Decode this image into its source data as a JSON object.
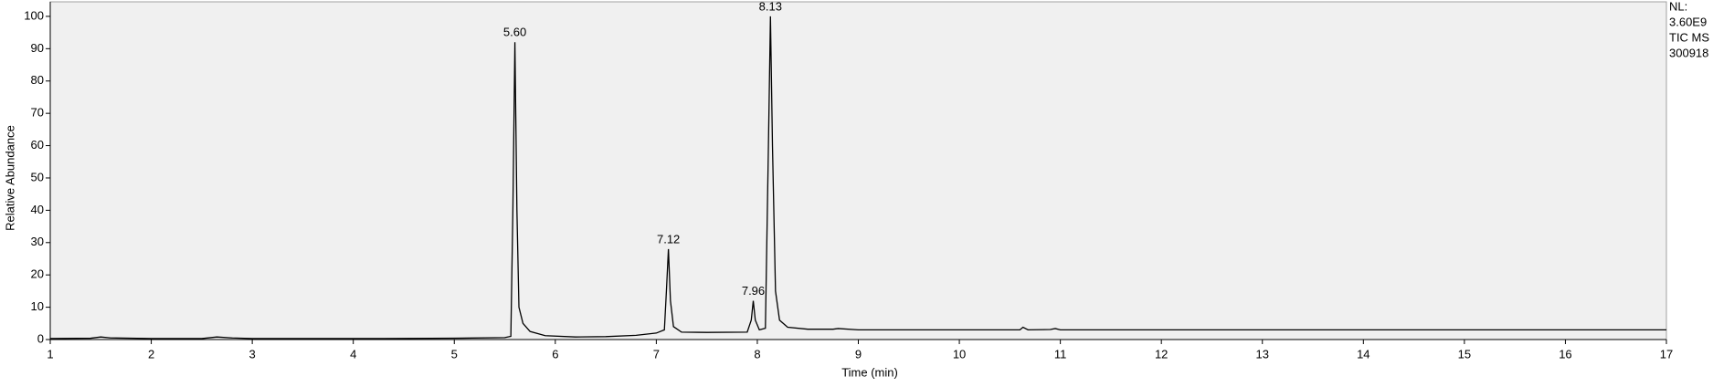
{
  "chart_data": {
    "type": "line",
    "x_label": "Time (min)",
    "y_label": "Relative Abundance",
    "side_note": [
      "NL:",
      "3.60E9",
      "TIC  MS",
      "300918"
    ],
    "xlim": [
      1,
      17
    ],
    "xticks": [
      1,
      2,
      3,
      4,
      5,
      6,
      7,
      8,
      9,
      10,
      11,
      12,
      13,
      14,
      15,
      16,
      17
    ],
    "ylim": [
      0,
      104.5
    ],
    "yticks": [
      0,
      10,
      20,
      30,
      40,
      50,
      60,
      70,
      80,
      90,
      100
    ],
    "grid": false,
    "series": [
      {
        "name": "TIC",
        "color": "#000000",
        "x": [
          1.0,
          1.4,
          1.5,
          1.6,
          2.0,
          2.5,
          2.65,
          2.8,
          3.0,
          4.0,
          4.3,
          5.0,
          5.5,
          5.56,
          5.58,
          5.6,
          5.62,
          5.64,
          5.68,
          5.75,
          5.9,
          6.2,
          6.5,
          6.8,
          7.0,
          7.08,
          7.1,
          7.12,
          7.14,
          7.17,
          7.25,
          7.5,
          7.9,
          7.94,
          7.96,
          7.98,
          8.02,
          8.08,
          8.11,
          8.13,
          8.15,
          8.18,
          8.22,
          8.3,
          8.5,
          8.75,
          8.8,
          9.0,
          10.0,
          10.6,
          10.63,
          10.68,
          10.9,
          10.95,
          11.0,
          12.0,
          14.0,
          17.0
        ],
        "values": [
          0.3,
          0.4,
          0.8,
          0.5,
          0.3,
          0.3,
          0.8,
          0.5,
          0.3,
          0.3,
          0.3,
          0.4,
          0.6,
          1,
          40,
          92,
          40,
          10,
          5,
          2.5,
          1.2,
          0.8,
          0.9,
          1.3,
          2,
          3,
          15,
          28,
          12,
          4,
          2.3,
          2.2,
          2.3,
          6,
          12,
          6,
          3,
          3.5,
          60,
          100,
          60,
          15,
          6,
          3.8,
          3.2,
          3.2,
          3.4,
          3,
          3,
          3,
          3.8,
          3,
          3.1,
          3.4,
          3,
          3,
          3,
          3
        ]
      }
    ],
    "annotations": [
      {
        "text": "5.60",
        "x": 5.6,
        "y": 92
      },
      {
        "text": "7.12",
        "x": 7.12,
        "y": 28
      },
      {
        "text": "7.96",
        "x": 7.96,
        "y": 12
      },
      {
        "text": "8.13",
        "x": 8.13,
        "y": 100
      }
    ]
  }
}
